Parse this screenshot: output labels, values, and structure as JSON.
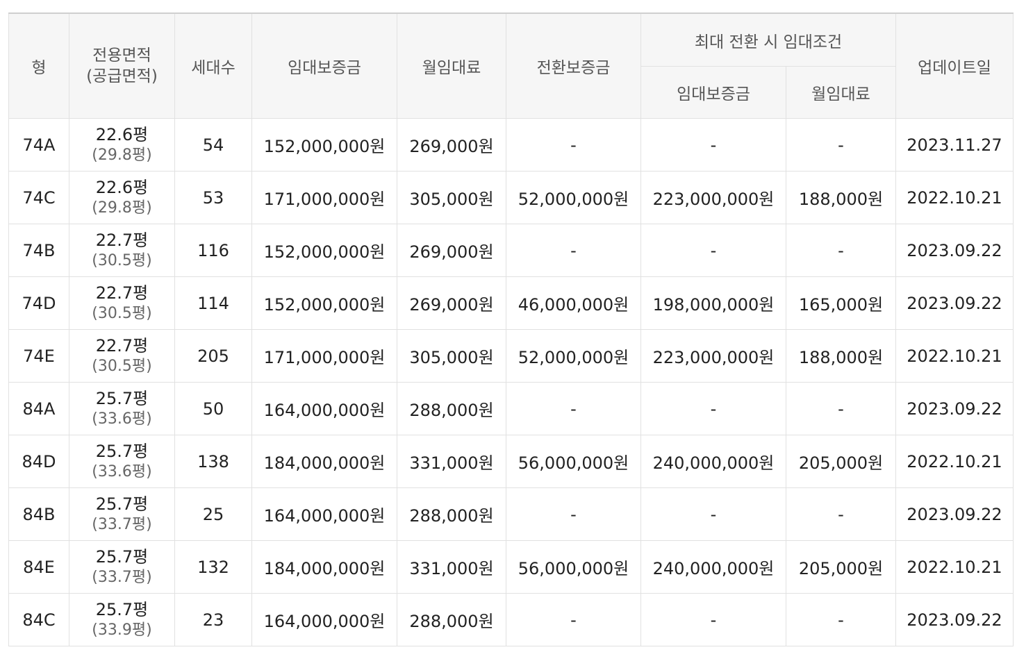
{
  "headers": {
    "type": "형",
    "area_line1": "전용면적",
    "area_line2": "(공급면적)",
    "households": "세대수",
    "deposit": "임대보증금",
    "monthly": "월임대료",
    "conversion": "전환보증금",
    "max_conversion": "최대 전환 시 임대조건",
    "max_deposit": "임대보증금",
    "max_monthly": "월임대료",
    "updated": "업데이트일"
  },
  "rows": [
    {
      "type": "74A",
      "area": "22.6평",
      "supply": "(29.8평)",
      "households": "54",
      "deposit": "152,000,000원",
      "monthly": "269,000원",
      "conversion": "-",
      "max_deposit": "-",
      "max_monthly": "-",
      "updated": "2023.11.27"
    },
    {
      "type": "74C",
      "area": "22.6평",
      "supply": "(29.8평)",
      "households": "53",
      "deposit": "171,000,000원",
      "monthly": "305,000원",
      "conversion": "52,000,000원",
      "max_deposit": "223,000,000원",
      "max_monthly": "188,000원",
      "updated": "2022.10.21"
    },
    {
      "type": "74B",
      "area": "22.7평",
      "supply": "(30.5평)",
      "households": "116",
      "deposit": "152,000,000원",
      "monthly": "269,000원",
      "conversion": "-",
      "max_deposit": "-",
      "max_monthly": "-",
      "updated": "2023.09.22"
    },
    {
      "type": "74D",
      "area": "22.7평",
      "supply": "(30.5평)",
      "households": "114",
      "deposit": "152,000,000원",
      "monthly": "269,000원",
      "conversion": "46,000,000원",
      "max_deposit": "198,000,000원",
      "max_monthly": "165,000원",
      "updated": "2023.09.22"
    },
    {
      "type": "74E",
      "area": "22.7평",
      "supply": "(30.5평)",
      "households": "205",
      "deposit": "171,000,000원",
      "monthly": "305,000원",
      "conversion": "52,000,000원",
      "max_deposit": "223,000,000원",
      "max_monthly": "188,000원",
      "updated": "2022.10.21"
    },
    {
      "type": "84A",
      "area": "25.7평",
      "supply": "(33.6평)",
      "households": "50",
      "deposit": "164,000,000원",
      "monthly": "288,000원",
      "conversion": "-",
      "max_deposit": "-",
      "max_monthly": "-",
      "updated": "2023.09.22"
    },
    {
      "type": "84D",
      "area": "25.7평",
      "supply": "(33.6평)",
      "households": "138",
      "deposit": "184,000,000원",
      "monthly": "331,000원",
      "conversion": "56,000,000원",
      "max_deposit": "240,000,000원",
      "max_monthly": "205,000원",
      "updated": "2022.10.21"
    },
    {
      "type": "84B",
      "area": "25.7평",
      "supply": "(33.7평)",
      "households": "25",
      "deposit": "164,000,000원",
      "monthly": "288,000원",
      "conversion": "-",
      "max_deposit": "-",
      "max_monthly": "-",
      "updated": "2023.09.22"
    },
    {
      "type": "84E",
      "area": "25.7평",
      "supply": "(33.7평)",
      "households": "132",
      "deposit": "184,000,000원",
      "monthly": "331,000원",
      "conversion": "56,000,000원",
      "max_deposit": "240,000,000원",
      "max_monthly": "205,000원",
      "updated": "2022.10.21"
    },
    {
      "type": "84C",
      "area": "25.7평",
      "supply": "(33.9평)",
      "households": "23",
      "deposit": "164,000,000원",
      "monthly": "288,000원",
      "conversion": "-",
      "max_deposit": "-",
      "max_monthly": "-",
      "updated": "2023.09.22"
    }
  ]
}
